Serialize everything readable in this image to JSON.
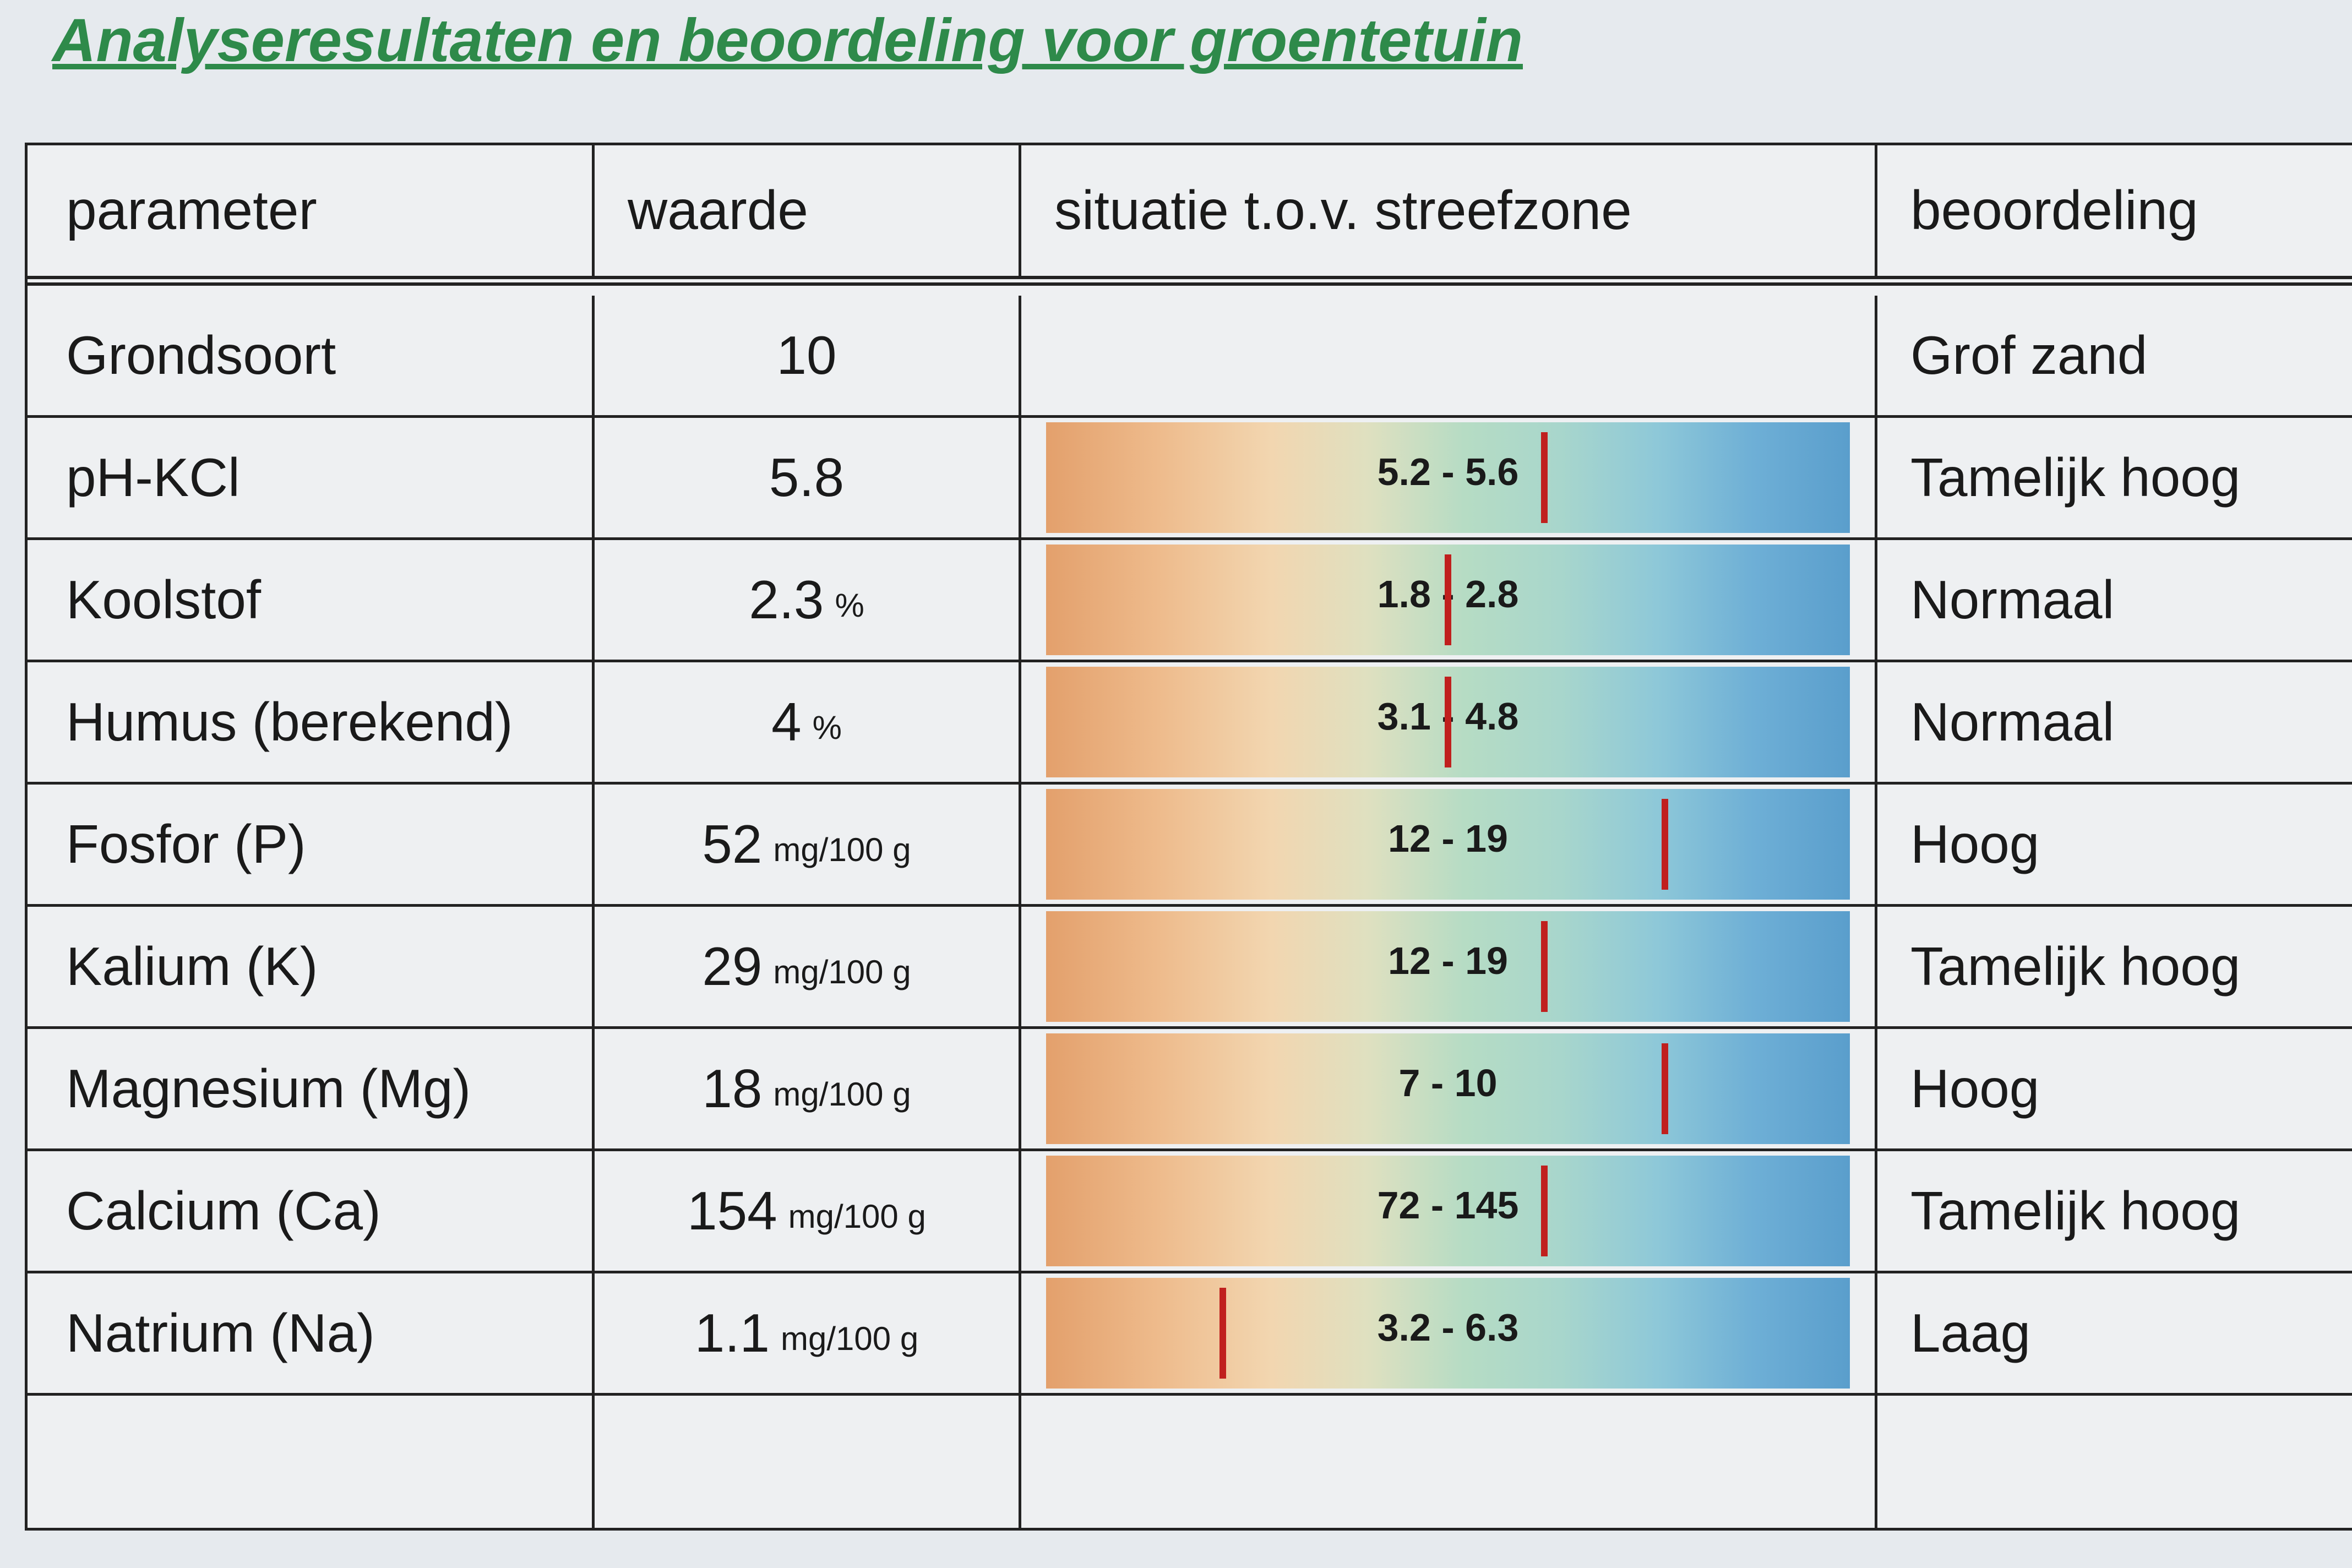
{
  "title": "Analyseresultaten en beoordeling voor groentetuin",
  "table": {
    "headers": [
      "parameter",
      "waarde",
      "situatie t.o.v. streefzone",
      "beoordeling"
    ],
    "rows": [
      {
        "parameter": "Grondsoort",
        "value": 10,
        "judgement": "Grof zand"
      },
      {
        "parameter": "pH-KCl",
        "value": 5.8,
        "range": "5.2 - 5.6",
        "judgement": "Tamelijk hoog"
      },
      {
        "parameter": "Koolstof",
        "value": 2.3,
        "unit": "%",
        "range": "1.8 - 2.8",
        "judgement": "Normaal"
      },
      {
        "parameter": "Humus (berekend)",
        "value": 4,
        "unit": "%",
        "range": "3.1 - 4.8",
        "judgement": "Normaal"
      },
      {
        "parameter": "Fosfor (P)",
        "value": 52,
        "unit": "mg/100 g",
        "range": "12 - 19",
        "judgement": "Hoog"
      },
      {
        "parameter": "Kalium (K)",
        "value": 29,
        "unit": "mg/100 g",
        "range": "12 - 19",
        "judgement": "Tamelijk hoog"
      },
      {
        "parameter": "Magnesium (Mg)",
        "value": 18,
        "unit": "mg/100 g",
        "range": "7 - 10",
        "judgement": "Hoog"
      },
      {
        "parameter": "Calcium (Ca)",
        "value": 154,
        "unit": "mg/100 g",
        "range": "72 - 145",
        "judgement": "Tamelijk hoog"
      },
      {
        "parameter": "Natrium (Na)",
        "value": 1.1,
        "unit": "mg/100 g",
        "range": "3.2 - 6.3",
        "judgement": "Laag"
      }
    ]
  }
}
